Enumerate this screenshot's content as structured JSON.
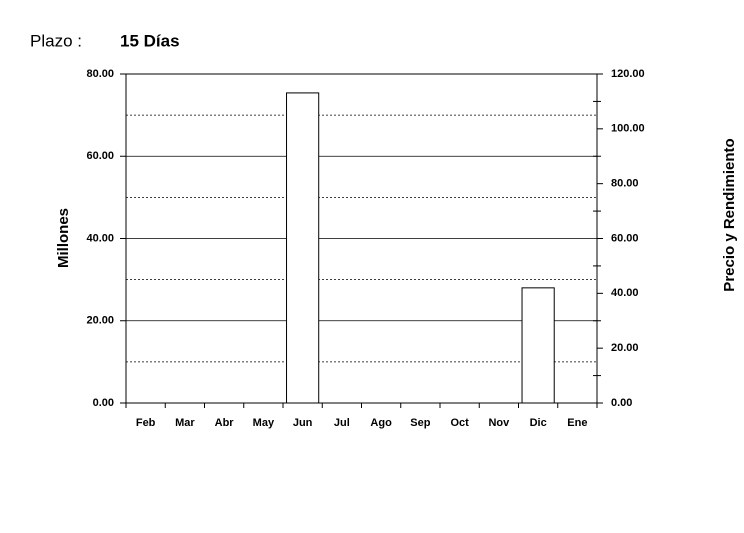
{
  "chart_data": {
    "type": "bar",
    "title": "Plazo :",
    "subtitle": "15 Días",
    "y_label": "Millones",
    "y2_label": "Precio y Rendimiento",
    "categories": [
      "Feb",
      "Mar",
      "Abr",
      "May",
      "Jun",
      "Jul",
      "Ago",
      "Sep",
      "Oct",
      "Nov",
      "Dic",
      "Ene"
    ],
    "values": [
      null,
      null,
      null,
      null,
      75.4,
      null,
      null,
      null,
      null,
      null,
      28.0,
      null
    ],
    "color": "#ffffff",
    "ylim": [
      0,
      80
    ],
    "yticks": [
      {
        "value": 0,
        "label": "0.00"
      },
      {
        "value": 20,
        "label": "20.00"
      },
      {
        "value": 40,
        "label": "40.00"
      },
      {
        "value": 60,
        "label": "60.00"
      },
      {
        "value": 80,
        "label": "80.00"
      }
    ],
    "yminor": [
      10,
      30,
      50,
      70
    ],
    "y2lim": [
      0,
      120
    ],
    "y2ticks": [
      {
        "value": 0,
        "label": "0.00"
      },
      {
        "value": 20,
        "label": "20.00"
      },
      {
        "value": 40,
        "label": "40.00"
      },
      {
        "value": 60,
        "label": "60.00"
      },
      {
        "value": 80,
        "label": "80.00"
      },
      {
        "value": 100,
        "label": "100.00"
      },
      {
        "value": 120,
        "label": "120.00"
      }
    ],
    "y2minor": [
      10,
      30,
      50,
      70,
      90,
      110
    ],
    "grid": true
  }
}
